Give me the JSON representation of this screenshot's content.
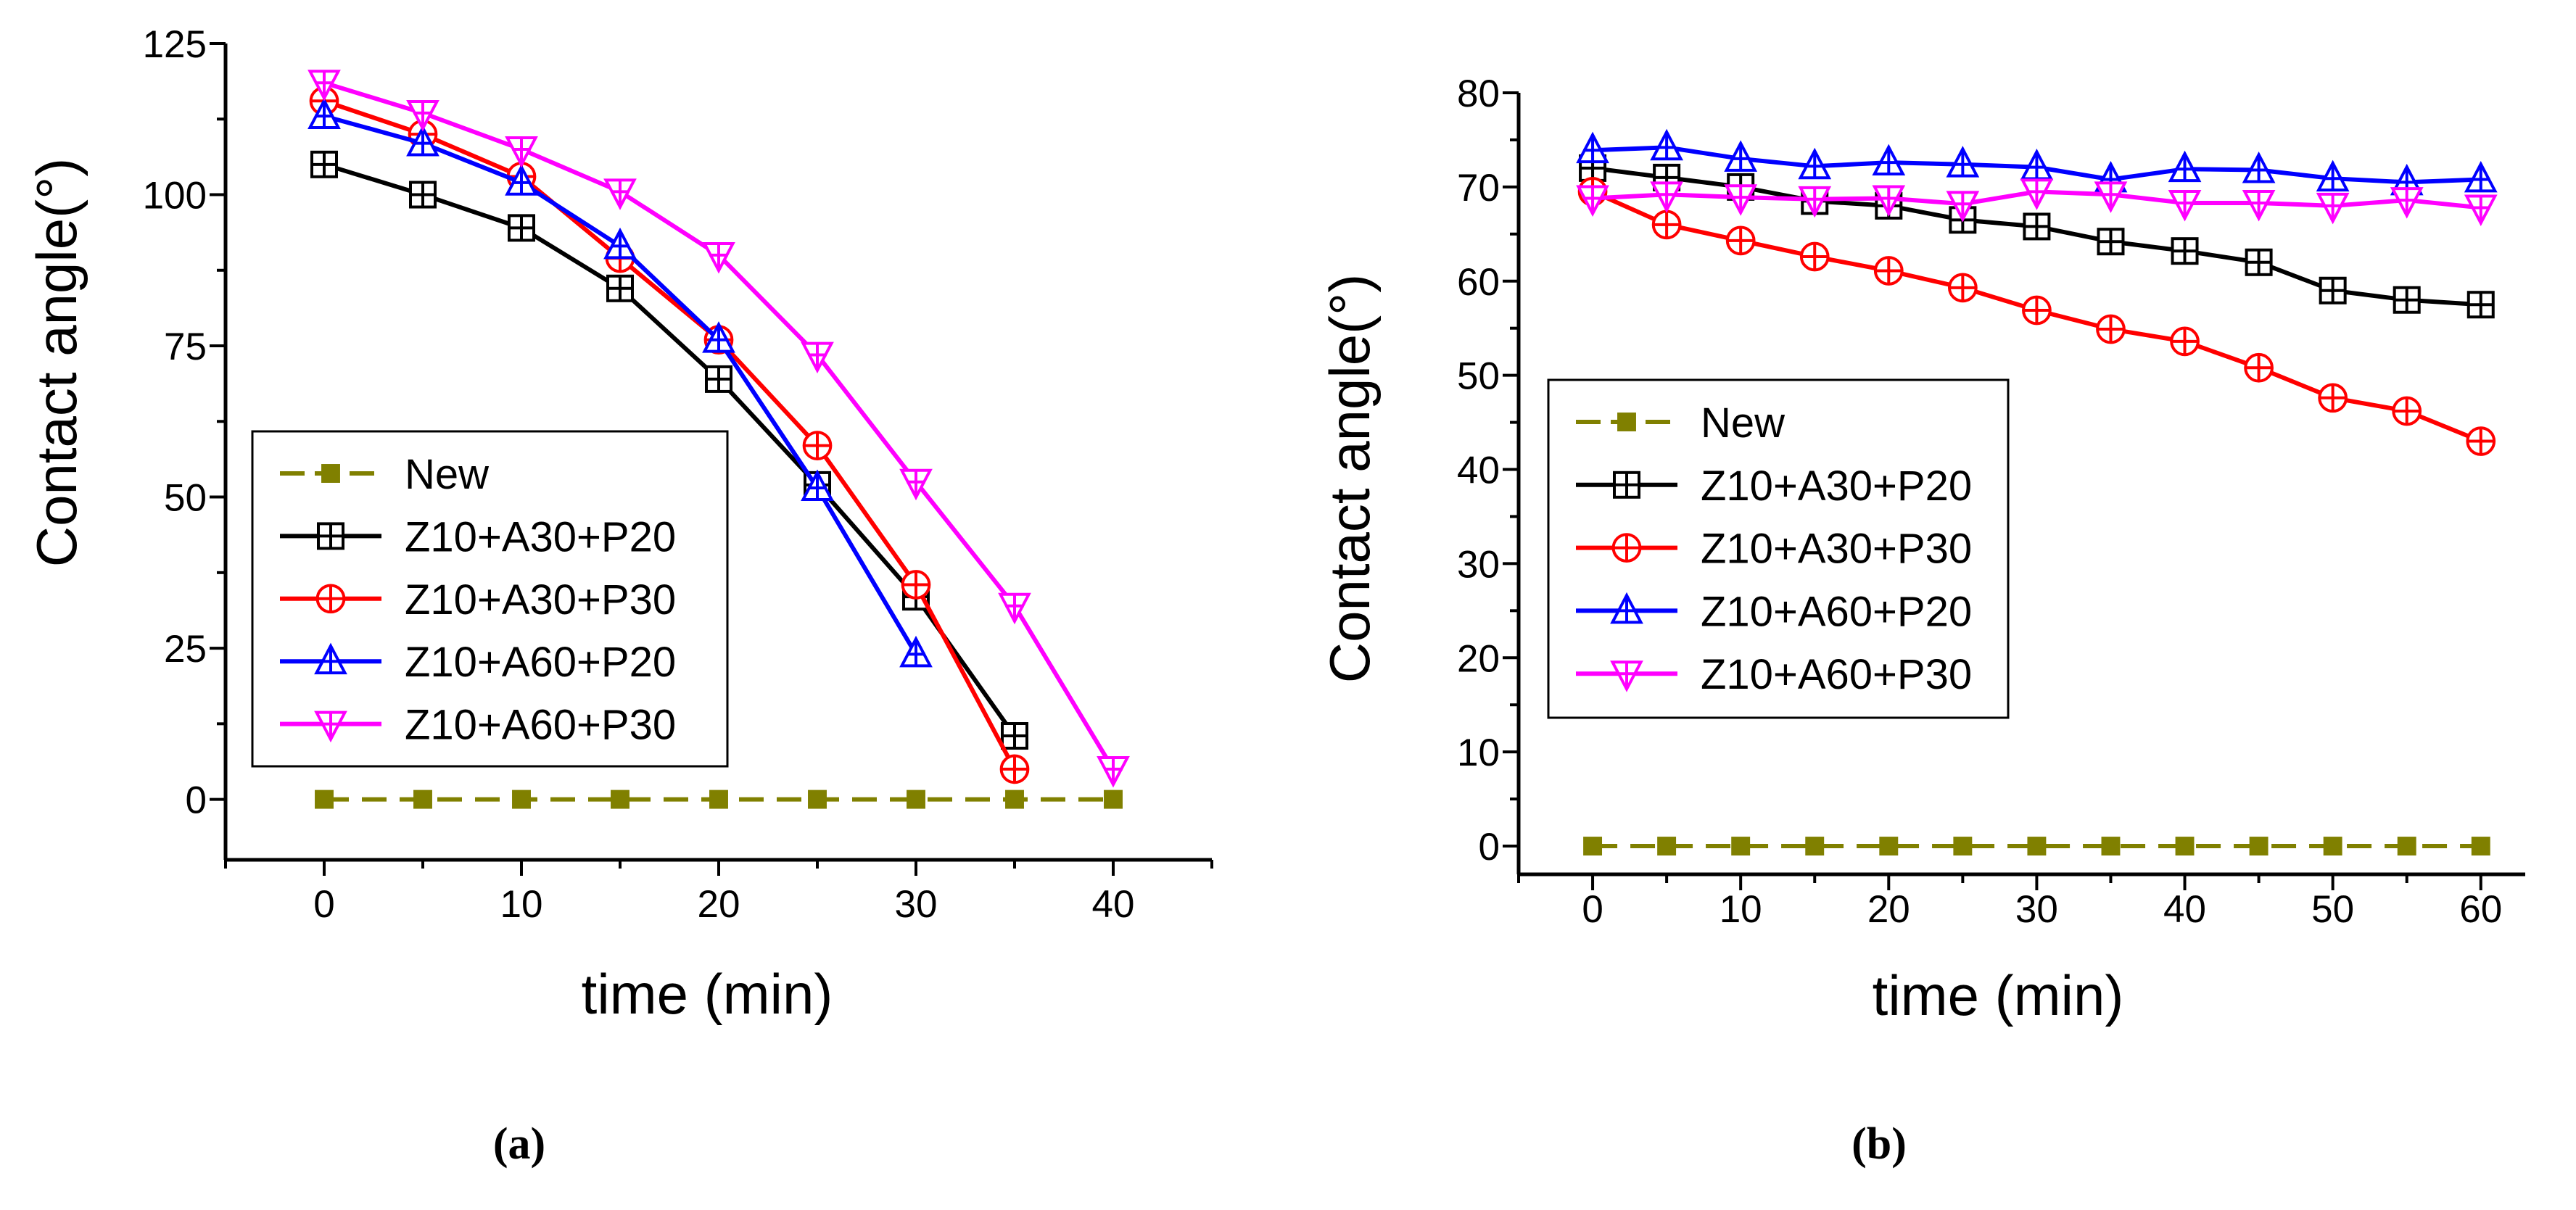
{
  "chart_data": [
    {
      "type": "line",
      "panel_label": "(a)",
      "xlabel": "time (min)",
      "ylabel": "Contact angle(°)",
      "xlim": [
        -5,
        45
      ],
      "ylim": [
        -10,
        125
      ],
      "xticks": [
        0,
        10,
        20,
        30,
        40
      ],
      "yticks": [
        0,
        25,
        50,
        75,
        100,
        125
      ],
      "legend_position": "lower-left",
      "series": [
        {
          "name": "New",
          "color": "#808000",
          "marker": "filled-square",
          "dashed": true,
          "x": [
            0,
            5,
            10,
            15,
            20,
            25,
            30,
            35,
            40
          ],
          "y": [
            0,
            0,
            0,
            0,
            0,
            0,
            0,
            0,
            0
          ]
        },
        {
          "name": "Z10+A30+P20",
          "color": "#000000",
          "marker": "crossed-square",
          "dashed": false,
          "x": [
            0,
            5,
            10,
            15,
            20,
            25,
            30,
            35
          ],
          "y": [
            105,
            100,
            94.5,
            84.5,
            69.5,
            52,
            33.5,
            10.5
          ]
        },
        {
          "name": "Z10+A30+P30",
          "color": "#ff0000",
          "marker": "crossed-circle",
          "dashed": false,
          "x": [
            0,
            5,
            10,
            15,
            20,
            25,
            30,
            35
          ],
          "y": [
            115.5,
            110,
            103,
            89.5,
            76,
            58.5,
            35.5,
            5
          ]
        },
        {
          "name": "Z10+A60+P20",
          "color": "#0000ff",
          "marker": "crossed-triangle-up",
          "dashed": false,
          "x": [
            0,
            5,
            10,
            15,
            20,
            25,
            30
          ],
          "y": [
            113,
            108.5,
            102,
            91.5,
            76,
            51.5,
            24
          ]
        },
        {
          "name": "Z10+A60+P30",
          "color": "#ff00ff",
          "marker": "crossed-triangle-down",
          "dashed": false,
          "x": [
            0,
            5,
            10,
            15,
            20,
            25,
            30,
            35,
            40
          ],
          "y": [
            118.5,
            113.5,
            107.5,
            100.5,
            90,
            73.5,
            52.5,
            32,
            5
          ]
        }
      ]
    },
    {
      "type": "line",
      "panel_label": "(b)",
      "xlabel": "time (min)",
      "ylabel": "Contact angle(°)",
      "xlim": [
        -5,
        63
      ],
      "ylim": [
        -3,
        80
      ],
      "xticks": [
        0,
        10,
        20,
        30,
        40,
        50,
        60
      ],
      "yticks": [
        0,
        10,
        20,
        30,
        40,
        50,
        60,
        70,
        80
      ],
      "legend_position": "center-left",
      "series": [
        {
          "name": "New",
          "color": "#808000",
          "marker": "filled-square",
          "dashed": true,
          "x": [
            0,
            5,
            10,
            15,
            20,
            25,
            30,
            35,
            40,
            45,
            50,
            55,
            60
          ],
          "y": [
            0,
            0,
            0,
            0,
            0,
            0,
            0,
            0,
            0,
            0,
            0,
            0,
            0
          ]
        },
        {
          "name": "Z10+A30+P20",
          "color": "#000000",
          "marker": "crossed-square",
          "dashed": false,
          "x": [
            0,
            5,
            10,
            15,
            20,
            25,
            30,
            35,
            40,
            45,
            50,
            55,
            60
          ],
          "y": [
            72,
            71,
            70,
            68.5,
            68,
            66.5,
            65.8,
            64.2,
            63.2,
            62,
            59,
            58,
            57.5
          ]
        },
        {
          "name": "Z10+A30+P30",
          "color": "#ff0000",
          "marker": "crossed-circle",
          "dashed": false,
          "x": [
            0,
            5,
            10,
            15,
            20,
            25,
            30,
            35,
            40,
            45,
            50,
            55,
            60
          ],
          "y": [
            69.5,
            66,
            64.3,
            62.6,
            61.1,
            59.3,
            56.9,
            54.9,
            53.6,
            50.8,
            47.6,
            46.2,
            43
          ]
        },
        {
          "name": "Z10+A60+P20",
          "color": "#0000ff",
          "marker": "crossed-triangle-up",
          "dashed": false,
          "x": [
            0,
            5,
            10,
            15,
            20,
            25,
            30,
            35,
            40,
            45,
            50,
            55,
            60
          ],
          "y": [
            73.9,
            74.2,
            73,
            72.2,
            72.6,
            72.4,
            72.1,
            70.8,
            71.9,
            71.8,
            70.9,
            70.5,
            70.8
          ]
        },
        {
          "name": "Z10+A60+P30",
          "color": "#ff00ff",
          "marker": "crossed-triangle-down",
          "dashed": false,
          "x": [
            0,
            5,
            10,
            15,
            20,
            25,
            30,
            35,
            40,
            45,
            50,
            55,
            60
          ],
          "y": [
            68.8,
            69.2,
            68.9,
            68.7,
            68.8,
            68.2,
            69.5,
            69.2,
            68.3,
            68.3,
            68,
            68.6,
            67.8
          ]
        }
      ]
    }
  ]
}
